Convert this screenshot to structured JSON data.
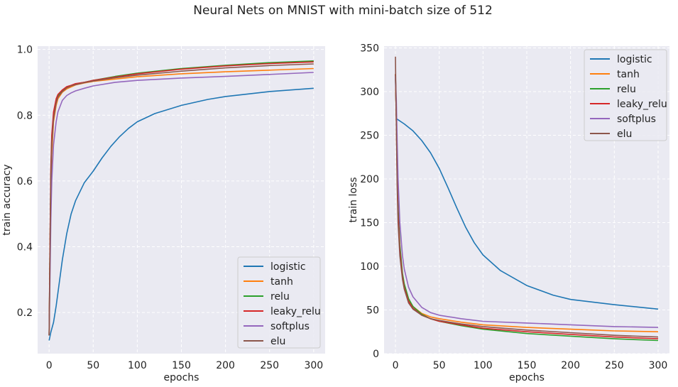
{
  "figure": {
    "title": "Neural Nets on MNIST with mini-batch size of 512"
  },
  "chart_data": [
    {
      "type": "line",
      "title": "",
      "xlabel": "epochs",
      "ylabel": "train accuracy",
      "xlim": [
        -13,
        313
      ],
      "ylim": [
        0.075,
        1.01
      ],
      "xticks": [
        0,
        50,
        100,
        150,
        200,
        250,
        300
      ],
      "yticks": [
        0.2,
        0.4,
        0.6,
        0.8,
        1.0
      ],
      "ytick_labels": [
        "0.2",
        "0.4",
        "0.6",
        "0.8",
        "1.0"
      ],
      "grid": true,
      "legend_position": "lower-right",
      "series": [
        {
          "name": "logistic",
          "color": "#1f77b4",
          "x": [
            0,
            2,
            5,
            8,
            10,
            15,
            20,
            25,
            30,
            40,
            50,
            60,
            70,
            80,
            90,
            100,
            120,
            150,
            180,
            200,
            250,
            300
          ],
          "y": [
            0.115,
            0.14,
            0.17,
            0.22,
            0.26,
            0.36,
            0.44,
            0.5,
            0.54,
            0.595,
            0.63,
            0.67,
            0.705,
            0.735,
            0.76,
            0.78,
            0.805,
            0.83,
            0.848,
            0.857,
            0.872,
            0.882
          ]
        },
        {
          "name": "tanh",
          "color": "#ff7f0e",
          "x": [
            0,
            1,
            2,
            3,
            5,
            8,
            10,
            15,
            20,
            25,
            30,
            40,
            50,
            75,
            100,
            150,
            200,
            250,
            300
          ],
          "y": [
            0.13,
            0.35,
            0.55,
            0.68,
            0.78,
            0.83,
            0.85,
            0.87,
            0.88,
            0.886,
            0.892,
            0.898,
            0.903,
            0.91,
            0.917,
            0.926,
            0.932,
            0.937,
            0.942
          ]
        },
        {
          "name": "relu",
          "color": "#2ca02c",
          "x": [
            0,
            1,
            2,
            3,
            5,
            8,
            10,
            15,
            20,
            25,
            30,
            40,
            50,
            75,
            100,
            150,
            200,
            250,
            300
          ],
          "y": [
            0.13,
            0.4,
            0.62,
            0.73,
            0.8,
            0.845,
            0.86,
            0.875,
            0.885,
            0.89,
            0.895,
            0.9,
            0.906,
            0.918,
            0.928,
            0.942,
            0.952,
            0.96,
            0.965
          ]
        },
        {
          "name": "leaky_relu",
          "color": "#d62728",
          "x": [
            0,
            1,
            2,
            3,
            5,
            8,
            10,
            15,
            20,
            25,
            30,
            40,
            50,
            75,
            100,
            150,
            200,
            250,
            300
          ],
          "y": [
            0.13,
            0.42,
            0.64,
            0.74,
            0.81,
            0.85,
            0.863,
            0.877,
            0.887,
            0.891,
            0.896,
            0.9,
            0.906,
            0.916,
            0.926,
            0.94,
            0.95,
            0.957,
            0.962
          ]
        },
        {
          "name": "softplus",
          "color": "#9467bd",
          "x": [
            0,
            1,
            2,
            3,
            5,
            8,
            10,
            15,
            20,
            25,
            30,
            40,
            50,
            75,
            100,
            150,
            200,
            250,
            300
          ],
          "y": [
            0.13,
            0.3,
            0.48,
            0.6,
            0.71,
            0.78,
            0.81,
            0.845,
            0.86,
            0.868,
            0.874,
            0.882,
            0.889,
            0.9,
            0.906,
            0.913,
            0.918,
            0.924,
            0.93
          ]
        },
        {
          "name": "elu",
          "color": "#8c564b",
          "x": [
            0,
            1,
            2,
            3,
            5,
            8,
            10,
            15,
            20,
            25,
            30,
            40,
            50,
            75,
            100,
            150,
            200,
            250,
            300
          ],
          "y": [
            0.13,
            0.38,
            0.6,
            0.71,
            0.79,
            0.838,
            0.855,
            0.872,
            0.883,
            0.889,
            0.893,
            0.899,
            0.904,
            0.914,
            0.922,
            0.934,
            0.944,
            0.951,
            0.956
          ]
        }
      ]
    },
    {
      "type": "line",
      "title": "",
      "xlabel": "epochs",
      "ylabel": "train loss",
      "xlim": [
        -13,
        313
      ],
      "ylim": [
        0,
        352
      ],
      "xticks": [
        0,
        50,
        100,
        150,
        200,
        250,
        300
      ],
      "yticks": [
        0,
        50,
        100,
        150,
        200,
        250,
        300,
        350
      ],
      "ytick_labels": [
        "0",
        "50",
        "100",
        "150",
        "200",
        "250",
        "300",
        "350"
      ],
      "grid": true,
      "legend_position": "upper-right",
      "series": [
        {
          "name": "logistic",
          "color": "#1f77b4",
          "x": [
            0,
            1,
            10,
            20,
            30,
            40,
            50,
            60,
            70,
            80,
            90,
            100,
            120,
            150,
            180,
            200,
            250,
            300
          ],
          "y": [
            315,
            269,
            263,
            255,
            244,
            230,
            212,
            190,
            167,
            145,
            127,
            113,
            95,
            78,
            67,
            62,
            56,
            51
          ]
        },
        {
          "name": "tanh",
          "color": "#ff7f0e",
          "x": [
            0,
            1,
            2,
            3,
            5,
            8,
            10,
            15,
            20,
            30,
            40,
            50,
            75,
            100,
            150,
            200,
            250,
            300
          ],
          "y": [
            320,
            265,
            200,
            160,
            120,
            90,
            78,
            62,
            54,
            46,
            42,
            40,
            36,
            33,
            30,
            28,
            26,
            25
          ]
        },
        {
          "name": "relu",
          "color": "#2ca02c",
          "x": [
            0,
            1,
            2,
            3,
            5,
            8,
            10,
            15,
            20,
            30,
            40,
            50,
            75,
            100,
            150,
            200,
            250,
            300
          ],
          "y": [
            320,
            270,
            210,
            170,
            125,
            92,
            80,
            63,
            54,
            45,
            40,
            37,
            32,
            28,
            23,
            20,
            17,
            15
          ]
        },
        {
          "name": "leaky_relu",
          "color": "#d62728",
          "x": [
            0,
            1,
            2,
            3,
            5,
            8,
            10,
            15,
            20,
            30,
            40,
            50,
            75,
            100,
            150,
            200,
            250,
            300
          ],
          "y": [
            320,
            265,
            200,
            160,
            118,
            88,
            76,
            60,
            52,
            44,
            40,
            37,
            33,
            29,
            25,
            22,
            19,
            17
          ]
        },
        {
          "name": "softplus",
          "color": "#9467bd",
          "x": [
            0,
            1,
            2,
            3,
            5,
            8,
            10,
            15,
            20,
            30,
            40,
            50,
            75,
            100,
            150,
            200,
            250,
            300
          ],
          "y": [
            318,
            290,
            240,
            200,
            150,
            112,
            97,
            76,
            65,
            53,
            47,
            44,
            40,
            37,
            35,
            33,
            31,
            30
          ]
        },
        {
          "name": "elu",
          "color": "#8c564b",
          "x": [
            0,
            1,
            2,
            3,
            5,
            8,
            10,
            15,
            20,
            30,
            40,
            50,
            75,
            100,
            150,
            200,
            250,
            300
          ],
          "y": [
            340,
            255,
            190,
            150,
            112,
            85,
            74,
            58,
            51,
            44,
            40,
            38,
            34,
            31,
            27,
            24,
            21,
            19
          ]
        }
      ]
    }
  ]
}
